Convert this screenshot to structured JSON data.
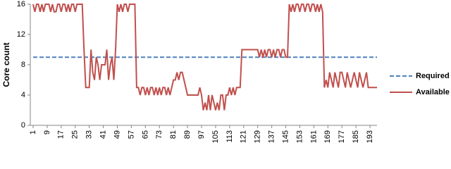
{
  "chart_data": {
    "type": "line",
    "y_label": "Core count",
    "x": [
      1,
      2,
      3,
      4,
      5,
      6,
      7,
      8,
      9,
      10,
      11,
      12,
      13,
      14,
      15,
      16,
      17,
      18,
      19,
      20,
      21,
      22,
      23,
      24,
      25,
      26,
      27,
      28,
      29,
      30,
      31,
      32,
      33,
      34,
      35,
      36,
      37,
      38,
      39,
      40,
      41,
      42,
      43,
      44,
      45,
      46,
      47,
      48,
      49,
      50,
      51,
      52,
      53,
      54,
      55,
      56,
      57,
      58,
      59,
      60,
      61,
      62,
      63,
      64,
      65,
      66,
      67,
      68,
      69,
      70,
      71,
      72,
      73,
      74,
      75,
      76,
      77,
      78,
      79,
      80,
      81,
      82,
      83,
      84,
      85,
      86,
      87,
      88,
      89,
      90,
      91,
      92,
      93,
      94,
      95,
      96,
      97,
      98,
      99,
      100,
      101,
      102,
      103,
      104,
      105,
      106,
      107,
      108,
      109,
      110,
      111,
      112,
      113,
      114,
      115,
      116,
      117,
      118,
      119,
      120,
      121,
      122,
      123,
      124,
      125,
      126,
      127,
      128,
      129,
      130,
      131,
      132,
      133,
      134,
      135,
      136,
      137,
      138,
      139,
      140,
      141,
      142,
      143,
      144,
      145,
      146,
      147,
      148,
      149,
      150,
      151,
      152,
      153,
      154,
      155,
      156,
      157,
      158,
      159,
      160,
      161,
      162,
      163,
      164,
      165,
      166,
      167,
      168,
      169,
      170,
      171,
      172,
      173,
      174,
      175,
      176,
      177,
      178,
      179,
      180,
      181,
      182,
      183,
      184,
      185,
      186,
      187,
      188,
      189,
      190,
      191,
      192,
      193,
      194,
      195,
      196,
      197
    ],
    "xlim": [
      1,
      197
    ],
    "xticks": [
      1,
      9,
      17,
      25,
      33,
      41,
      49,
      57,
      65,
      73,
      81,
      89,
      97,
      105,
      113,
      121,
      129,
      137,
      145,
      153,
      161,
      169,
      177,
      185,
      193
    ],
    "ylim": [
      0,
      16
    ],
    "yticks": [
      0,
      4,
      8,
      12,
      16
    ],
    "series": [
      {
        "name": "Required",
        "color": "#4f81bd",
        "dashed": true,
        "values": [
          9,
          9,
          9,
          9,
          9,
          9,
          9,
          9,
          9,
          9,
          9,
          9,
          9,
          9,
          9,
          9,
          9,
          9,
          9,
          9,
          9,
          9,
          9,
          9,
          9,
          9,
          9,
          9,
          9,
          9,
          9,
          9,
          9,
          9,
          9,
          9,
          9,
          9,
          9,
          9,
          9,
          9,
          9,
          9,
          9,
          9,
          9,
          9,
          9,
          9,
          9,
          9,
          9,
          9,
          9,
          9,
          9,
          9,
          9,
          9,
          9,
          9,
          9,
          9,
          9,
          9,
          9,
          9,
          9,
          9,
          9,
          9,
          9,
          9,
          9,
          9,
          9,
          9,
          9,
          9,
          9,
          9,
          9,
          9,
          9,
          9,
          9,
          9,
          9,
          9,
          9,
          9,
          9,
          9,
          9,
          9,
          9,
          9,
          9,
          9,
          9,
          9,
          9,
          9,
          9,
          9,
          9,
          9,
          9,
          9,
          9,
          9,
          9,
          9,
          9,
          9,
          9,
          9,
          9,
          9,
          9,
          9,
          9,
          9,
          9,
          9,
          9,
          9,
          9,
          9,
          9,
          9,
          9,
          9,
          9,
          9,
          9,
          9,
          9,
          9,
          9,
          9,
          9,
          9,
          9,
          9,
          9,
          9,
          9,
          9,
          9,
          9,
          9,
          9,
          9,
          9,
          9,
          9,
          9,
          9,
          9,
          9,
          9,
          9,
          9,
          9,
          9,
          9,
          9,
          9,
          9,
          9,
          9,
          9,
          9,
          9,
          9,
          9,
          9,
          9,
          9,
          9,
          9,
          9,
          9,
          9,
          9,
          9,
          9,
          9,
          9,
          9,
          9,
          9,
          9,
          9,
          9
        ]
      },
      {
        "name": "Available",
        "color": "#c0504d",
        "dashed": false,
        "values": [
          16,
          15,
          16,
          16,
          15,
          16,
          15,
          16,
          16,
          16,
          15,
          16,
          15,
          15,
          16,
          16,
          15,
          16,
          16,
          15,
          16,
          15,
          16,
          16,
          15,
          16,
          16,
          16,
          16,
          10,
          5,
          5,
          5,
          10,
          7,
          6,
          9,
          8,
          6,
          8,
          8,
          8,
          10,
          6,
          8,
          9,
          6,
          10,
          16,
          15,
          16,
          15,
          16,
          16,
          15,
          16,
          16,
          16,
          16,
          5,
          5,
          4,
          5,
          5,
          4,
          5,
          4,
          5,
          5,
          4,
          5,
          4,
          5,
          4,
          5,
          5,
          4,
          5,
          4,
          5,
          6,
          6,
          7,
          6,
          7,
          7,
          6,
          5,
          4,
          4,
          4,
          4,
          4,
          4,
          4,
          5,
          4,
          2,
          3,
          2,
          4,
          2,
          4,
          3,
          2,
          3,
          2,
          4,
          4,
          2,
          4,
          4,
          5,
          4,
          5,
          4,
          5,
          5,
          5,
          10,
          10,
          10,
          10,
          10,
          10,
          10,
          10,
          10,
          10,
          9,
          10,
          9,
          10,
          9,
          10,
          10,
          9,
          10,
          9,
          10,
          10,
          9,
          10,
          10,
          9,
          9,
          16,
          15,
          16,
          15,
          16,
          16,
          15,
          16,
          16,
          15,
          16,
          16,
          15,
          16,
          16,
          15,
          16,
          15,
          16,
          15,
          5,
          6,
          5,
          7,
          6,
          5,
          7,
          6,
          5,
          7,
          7,
          6,
          5,
          7,
          6,
          5,
          6,
          7,
          6,
          5,
          7,
          6,
          5,
          6,
          7,
          5,
          5,
          5,
          5,
          5,
          5
        ]
      }
    ]
  }
}
